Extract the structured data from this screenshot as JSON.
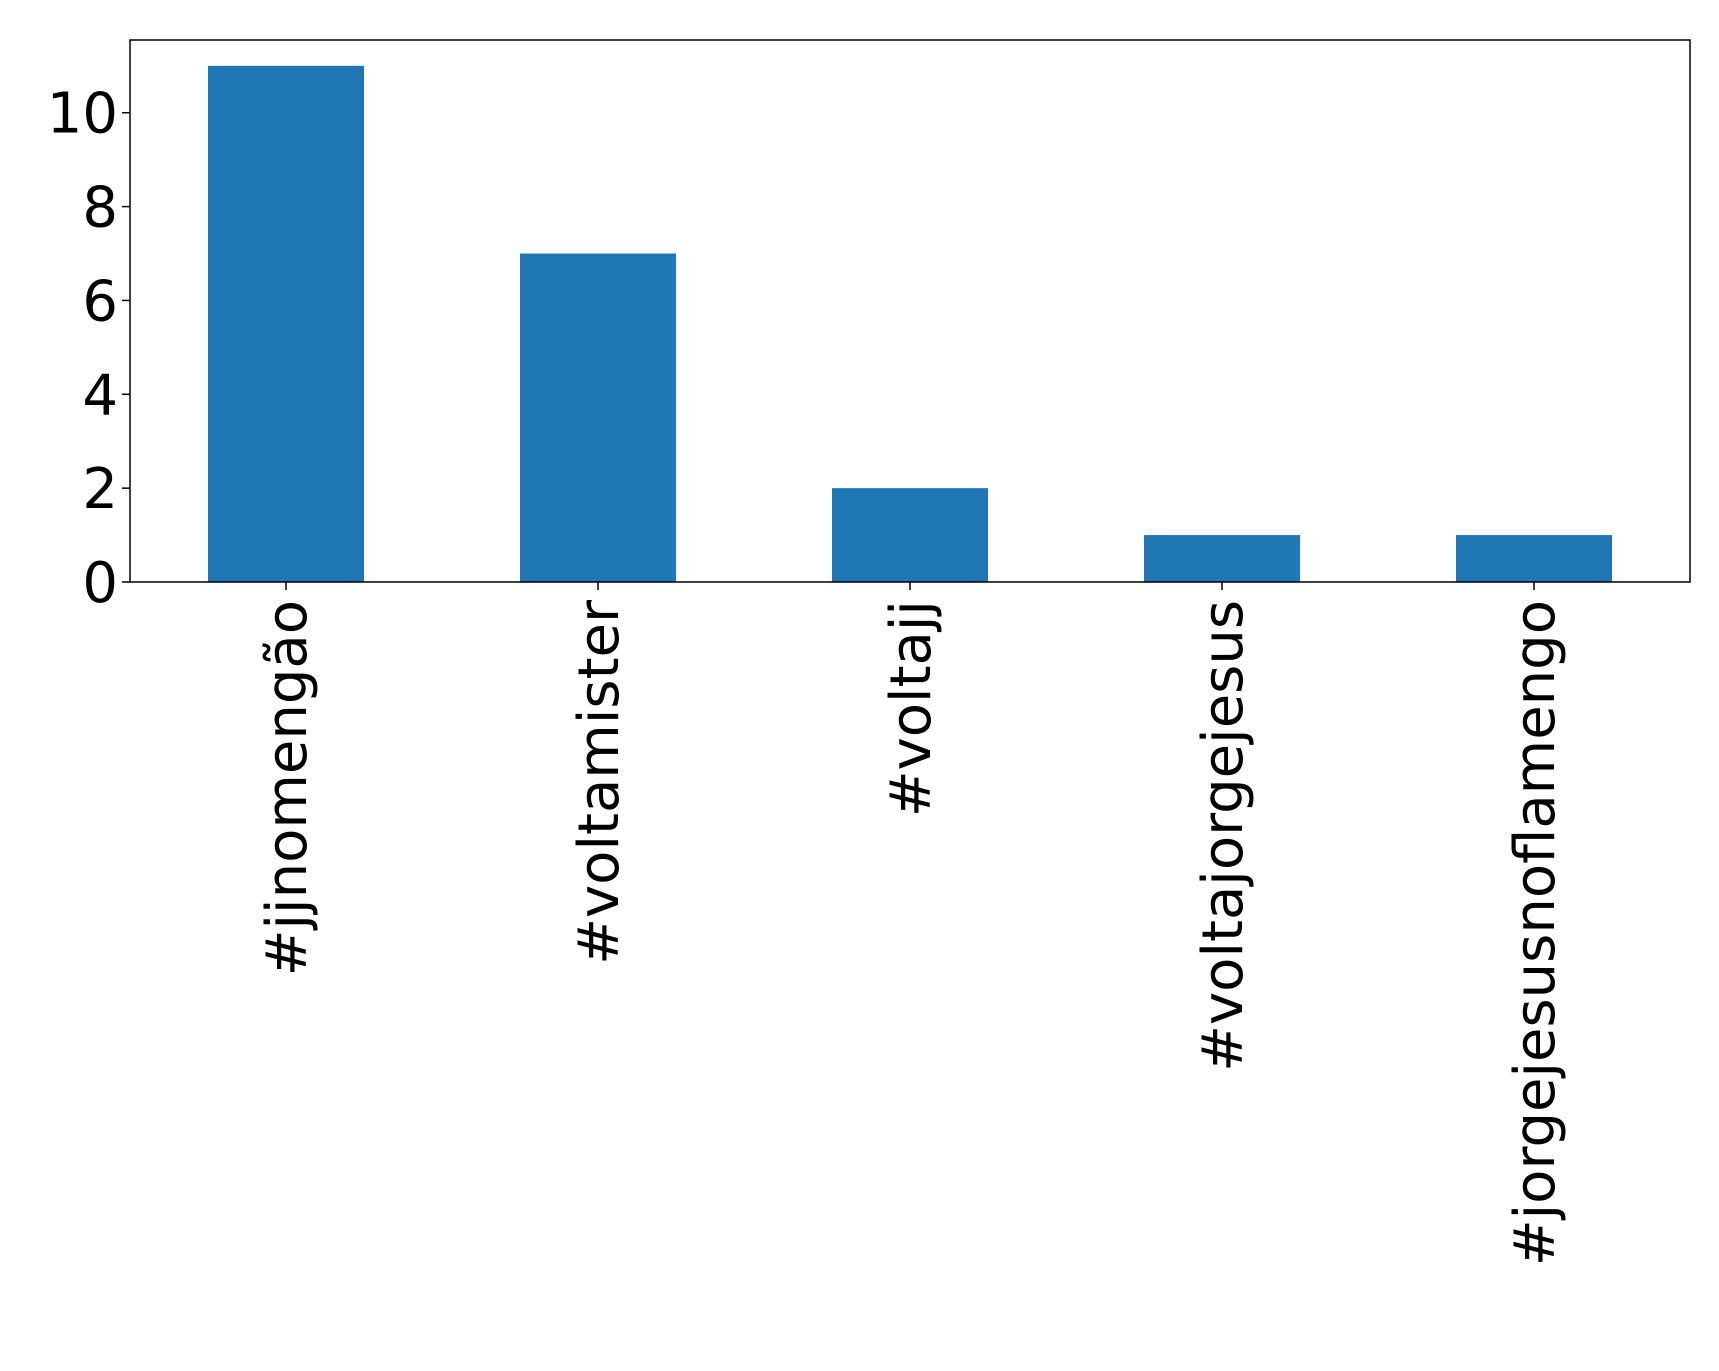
{
  "chart_data": {
    "type": "bar",
    "title": "",
    "xlabel": "",
    "ylabel": "",
    "categories": [
      "#jjnomengão",
      "#voltamister",
      "#voltajj",
      "#voltajorgejesus",
      "#jorgejesusnoflamengo"
    ],
    "values": [
      11,
      7,
      2,
      1,
      1
    ],
    "ylim": [
      0,
      11.55
    ],
    "yticks": [
      0,
      2,
      4,
      6,
      8,
      10
    ],
    "grid": false,
    "legend": "none",
    "bar_color": "#1f77b4",
    "x_tick_rotation": "vertical"
  }
}
